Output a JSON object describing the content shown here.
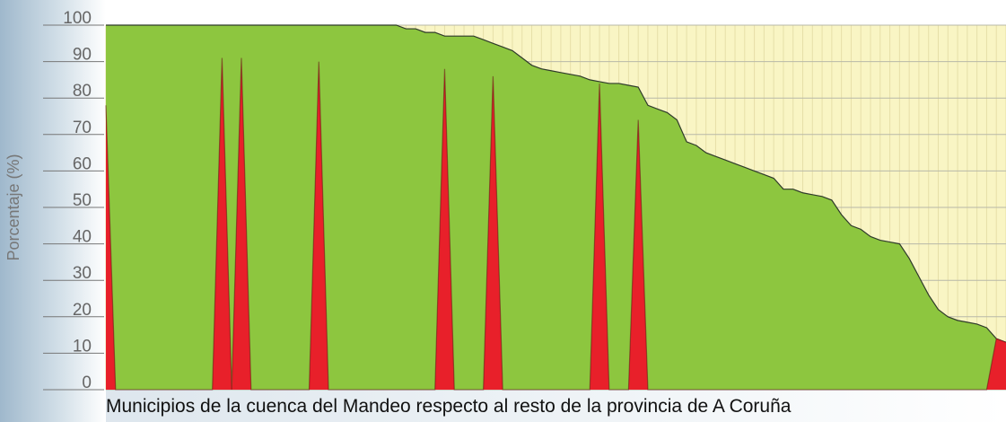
{
  "chart_data": {
    "type": "area",
    "ylabel": "Porcentaje (%)",
    "xlabel": "Municipios de la cuenca del Mandeo respecto al resto de la provincia de A Coruña",
    "categories": [
      null,
      null,
      null,
      null,
      null,
      null,
      null,
      null,
      null,
      null,
      null,
      null,
      null,
      null,
      null,
      null,
      null,
      null,
      null,
      null,
      null,
      null,
      null,
      null,
      null,
      null,
      null,
      null,
      null,
      null,
      null,
      null,
      null,
      null,
      null,
      null,
      null,
      null,
      null,
      null,
      null,
      null,
      null,
      null,
      null,
      null,
      null,
      null,
      null,
      null,
      null,
      null,
      null,
      null,
      null,
      null,
      null,
      null,
      null,
      null,
      null,
      null,
      null,
      null,
      null,
      null,
      null,
      null,
      null,
      null,
      null,
      null,
      null,
      null,
      null,
      null,
      null,
      null,
      null,
      null,
      null,
      null,
      null,
      null,
      null,
      null,
      null,
      null,
      null,
      null,
      null,
      null,
      null,
      null
    ],
    "series": [
      {
        "color": "#8dc63f",
        "values": [
          100,
          100,
          100,
          100,
          100,
          100,
          100,
          100,
          100,
          100,
          100,
          100,
          100,
          100,
          100,
          100,
          100,
          100,
          100,
          100,
          100,
          100,
          100,
          100,
          100,
          100,
          100,
          100,
          100,
          100,
          100,
          99,
          99,
          98,
          98,
          97,
          97,
          97,
          97,
          96,
          95,
          94,
          93,
          91,
          89,
          88,
          87.5,
          87,
          86.5,
          86,
          85,
          84.5,
          84,
          84,
          83.5,
          83,
          78,
          77,
          76,
          74,
          68,
          67,
          65,
          64,
          63,
          62,
          61,
          60,
          59,
          58,
          55,
          55,
          54,
          53.5,
          53,
          52,
          48,
          45,
          44,
          42,
          41,
          40.5,
          40,
          36,
          31,
          26,
          22,
          20,
          19,
          18.5,
          18,
          17,
          14,
          13
        ]
      },
      {
        "color": "#e8202a",
        "values": [
          78,
          0,
          0,
          0,
          0,
          0,
          0,
          0,
          0,
          0,
          0,
          0,
          91,
          0,
          91,
          0,
          0,
          0,
          0,
          0,
          0,
          0,
          90,
          0,
          0,
          0,
          0,
          0,
          0,
          0,
          0,
          0,
          0,
          0,
          0,
          88,
          0,
          0,
          0,
          0,
          86,
          0,
          0,
          0,
          0,
          0,
          0,
          0,
          0,
          0,
          0,
          84,
          0,
          0,
          0,
          74,
          0,
          0,
          0,
          0,
          0,
          0,
          0,
          0,
          0,
          0,
          0,
          0,
          0,
          0,
          0,
          0,
          0,
          0,
          0,
          0,
          0,
          0,
          0,
          0,
          0,
          0,
          0,
          0,
          0,
          0,
          0,
          0,
          0,
          0,
          0,
          0,
          14,
          13
        ]
      }
    ],
    "background_color": "#f9f5c4",
    "ylim": [
      0,
      100
    ],
    "yticks": [
      0,
      10,
      20,
      30,
      40,
      50,
      60,
      70,
      80,
      90,
      100
    ],
    "grid": true
  }
}
